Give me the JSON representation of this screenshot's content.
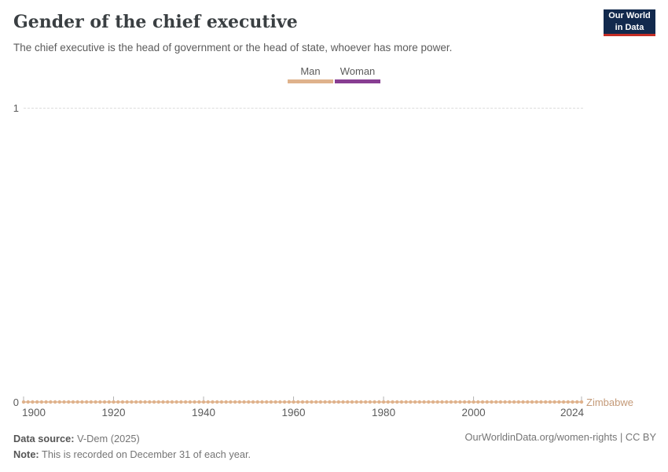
{
  "header": {
    "title": "Gender of the chief executive",
    "subtitle": "The chief executive is the head of government or the head of state, whoever has more power.",
    "logo": {
      "line1": "Our World",
      "line2": "in Data",
      "bg_color": "#12294D",
      "accent_color": "#C42D25"
    }
  },
  "legend": {
    "items": [
      {
        "label": "Man",
        "color": "#DFB28C"
      },
      {
        "label": "Woman",
        "color": "#883E92"
      }
    ]
  },
  "chart_data": {
    "type": "line",
    "title": "Gender of the chief executive",
    "subtitle": "The chief executive is the head of government or the head of state, whoever has more power.",
    "series": [
      {
        "name": "Zimbabwe",
        "color": "#DFB28C",
        "label_color": "#C49A78",
        "x_start": 1900,
        "x_end": 2024,
        "step": 1,
        "constant_value": 0,
        "marker": "circle"
      }
    ],
    "categories_encoding": {
      "0": "Man",
      "1": "Woman"
    },
    "legend_entries": [
      "Man",
      "Woman"
    ],
    "ylim": [
      0,
      1
    ],
    "ytick_labels": {
      "top": "1",
      "bottom": "0"
    },
    "xticks": [
      1900,
      1920,
      1940,
      1960,
      1980,
      2000,
      2024
    ],
    "grid": "dashed horizontal line at y=1",
    "grid_color": "#DCDCDC",
    "tick_color": "#B3B3B3"
  },
  "footer": {
    "source_label": "Data source:",
    "source_value": " V-Dem (2025)",
    "note_label": "Note:",
    "note_value": " This is recorded on December 31 of each year.",
    "url": "OurWorldinData.org/women-rights | CC BY"
  }
}
